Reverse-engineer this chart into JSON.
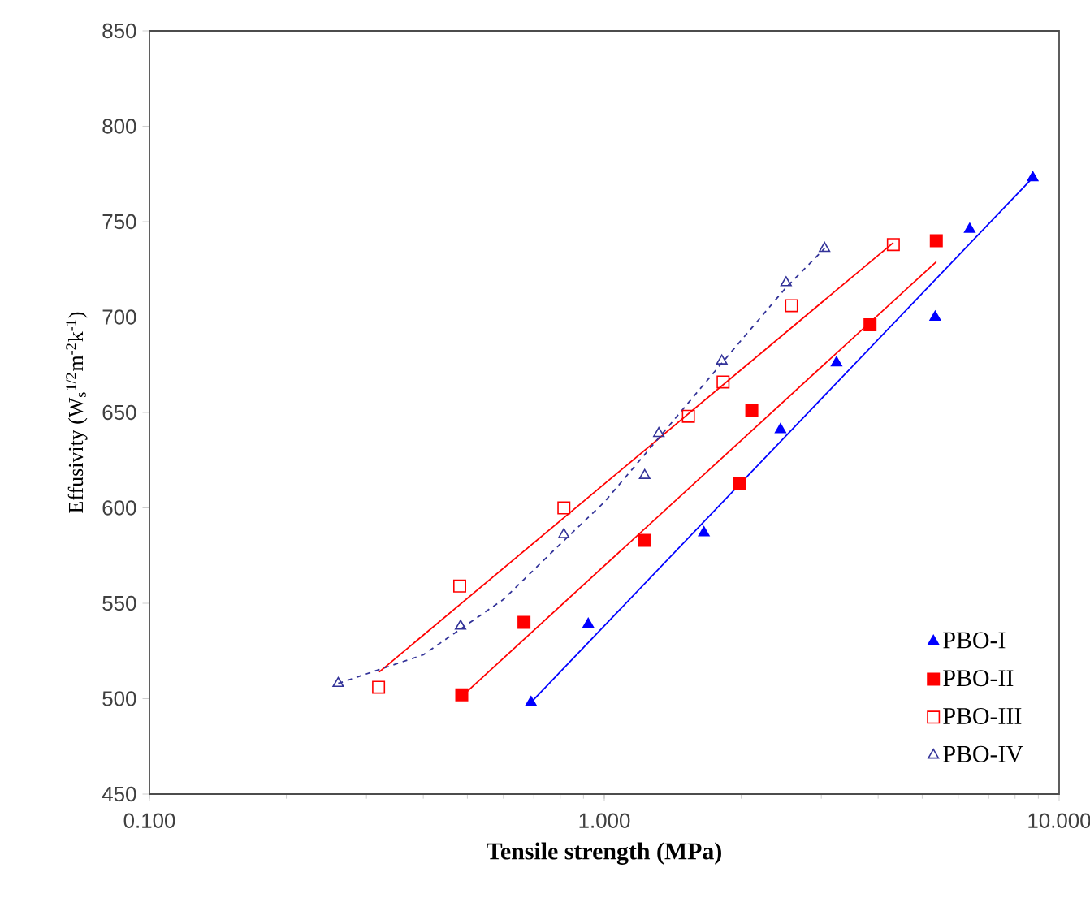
{
  "chart_data": {
    "type": "scatter",
    "xlabel": "Tensile strength (MPa)",
    "ylabel": "Effusivity (W$_{s}$$^{1/2}$m$^{-2}$k$^{-1}$)",
    "log": "x",
    "xlim": [
      0.1,
      10
    ],
    "xticks": [
      {
        "value": 0.1,
        "label": "0.100"
      },
      {
        "value": 1,
        "label": "1.000"
      },
      {
        "value": 10,
        "label": "10.000"
      }
    ],
    "ylim": [
      450,
      850
    ],
    "yticks": [
      450,
      500,
      550,
      600,
      650,
      700,
      750,
      800,
      850
    ],
    "grid": false,
    "legend": "bottom right",
    "series": [
      {
        "name": "PBO-I",
        "color": "#0000ff",
        "marker": "triangle",
        "x": [
          0.69,
          0.922,
          1.656,
          2.44,
          3.24,
          5.34,
          6.36,
          8.75
        ],
        "values": [
          498,
          539,
          587,
          641,
          676,
          700,
          746,
          773
        ]
      },
      {
        "name": "PBO-II",
        "color": "#ff0000",
        "marker": "square",
        "x": [
          0.486,
          0.666,
          1.224,
          1.987,
          2.11,
          3.84,
          5.37
        ],
        "values": [
          502,
          540,
          583,
          613,
          651,
          696,
          740
        ]
      },
      {
        "name": "PBO-III",
        "color": "#ff0000",
        "marker": "square",
        "x": [
          0.319,
          0.481,
          0.815,
          1.531,
          1.825,
          2.58,
          4.32
        ],
        "values": [
          506,
          559,
          600,
          648,
          666,
          706,
          738
        ]
      },
      {
        "name": "PBO-IV",
        "color": "#333399",
        "marker": "triangle",
        "x": [
          0.26,
          0.483,
          0.815,
          1.227,
          1.318,
          1.813,
          2.51,
          3.05
        ],
        "values": [
          508,
          538,
          586,
          617,
          639,
          677,
          718,
          736
        ]
      },
      {
        "type": "line",
        "color": "#0000ff",
        "marker": "none",
        "line_style": "solid",
        "x": [
          0.69,
          8.75
        ],
        "values": [
          498,
          773
        ]
      },
      {
        "type": "line",
        "color": "#ff0000",
        "marker": "none",
        "line_style": "solid",
        "x": [
          0.49,
          5.37
        ],
        "values": [
          502,
          729
        ]
      },
      {
        "type": "line",
        "color": "#ff0000",
        "marker": "none",
        "line_style": "solid",
        "x": [
          0.32,
          4.32
        ],
        "values": [
          514,
          739
        ]
      },
      {
        "type": "line",
        "color": "#333399",
        "marker": "none",
        "line_style": "dashed",
        "x": [
          0.26,
          0.4,
          0.6,
          0.8,
          1.0,
          1.3,
          1.8,
          2.5,
          3.05
        ],
        "values": [
          508,
          523,
          552,
          581,
          603,
          635,
          675,
          715,
          736
        ]
      }
    ]
  }
}
